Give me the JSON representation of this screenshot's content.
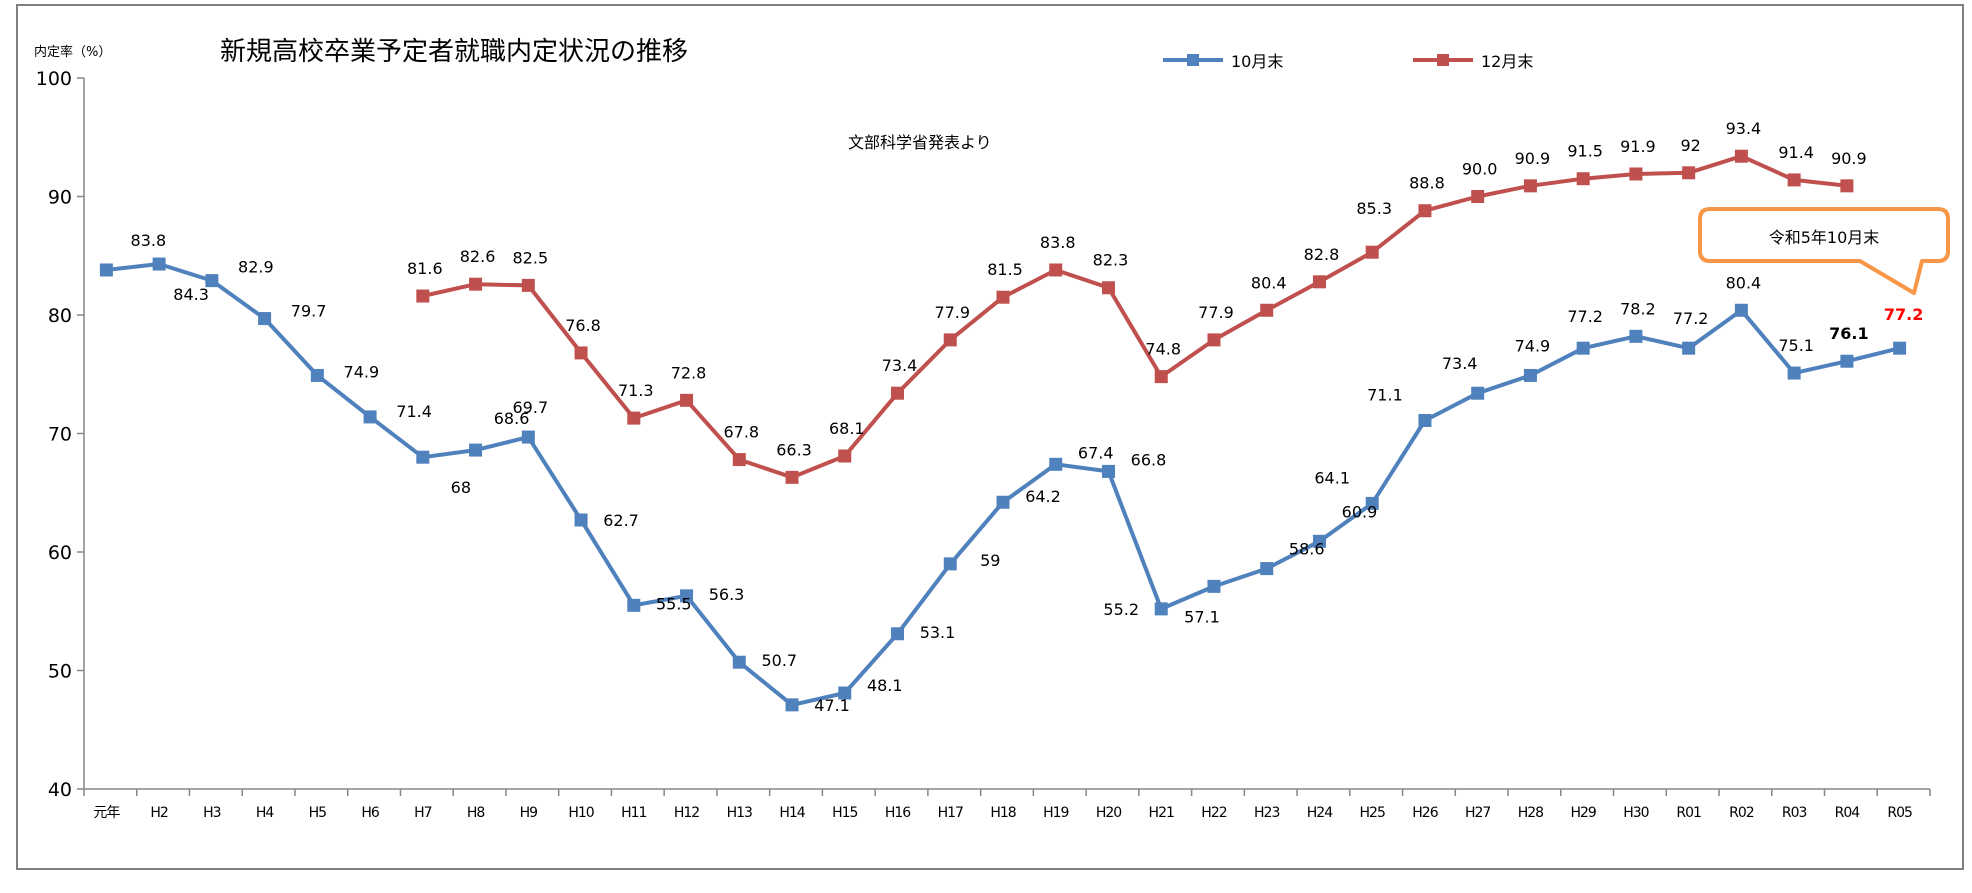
{
  "chart_data": {
    "type": "line",
    "title": "新規高校卒業予定者就職内定状況の推移",
    "subtitle": "文部科学省発表より",
    "ylabel": "内定率（%）",
    "xlabel": "",
    "ylim": [
      40,
      100
    ],
    "yticks": [
      40,
      50,
      60,
      70,
      80,
      90,
      100
    ],
    "grid": false,
    "legend_position": "top-center",
    "categories": [
      "元年",
      "H2",
      "H3",
      "H4",
      "H5",
      "H6",
      "H7",
      "H8",
      "H9",
      "H10",
      "H11",
      "H12",
      "H13",
      "H14",
      "H15",
      "H16",
      "H17",
      "H18",
      "H19",
      "H20",
      "H21",
      "H22",
      "H23",
      "H24",
      "H25",
      "H26",
      "H27",
      "H28",
      "H29",
      "H30",
      "R01",
      "R02",
      "R03",
      "R04",
      "R05"
    ],
    "series": [
      {
        "name": "10月末",
        "color": "#4f81bd",
        "values": [
          83.8,
          84.3,
          82.9,
          79.7,
          74.9,
          71.4,
          68,
          68.6,
          69.7,
          62.7,
          55.5,
          56.3,
          50.7,
          47.1,
          48.1,
          53.1,
          59,
          64.2,
          67.4,
          66.8,
          55.2,
          57.1,
          58.6,
          60.9,
          64.1,
          71.1,
          73.4,
          74.9,
          77.2,
          78.2,
          77.2,
          80.4,
          75.1,
          76.1,
          77.2
        ],
        "labels": [
          "83.8",
          "84.3",
          "82.9",
          "79.7",
          "74.9",
          "71.4",
          "68",
          "68.6",
          "69.7",
          "62.7",
          "55.5",
          "56.3",
          "50.7",
          "47.1",
          "48.1",
          "53.1",
          "59",
          "64.2",
          "67.4",
          "66.8",
          "55.2",
          "57.1",
          "58.6",
          "60.9",
          "64.1",
          "71.1",
          "73.4",
          "74.9",
          "77.2",
          "78.2",
          "77.2",
          "80.4",
          "75.1",
          "76.1",
          "77.2"
        ]
      },
      {
        "name": "12月末",
        "color": "#c0504d",
        "values": [
          null,
          null,
          null,
          null,
          null,
          null,
          81.6,
          82.6,
          82.5,
          76.8,
          71.3,
          72.8,
          67.8,
          66.3,
          68.1,
          73.4,
          77.9,
          81.5,
          83.8,
          82.3,
          74.8,
          77.9,
          80.4,
          82.8,
          85.3,
          88.8,
          90.0,
          90.9,
          91.5,
          91.9,
          92,
          93.4,
          91.4,
          90.9,
          null
        ],
        "labels": [
          null,
          null,
          null,
          null,
          null,
          null,
          "81.6",
          "82.6",
          "82.5",
          "76.8",
          "71.3",
          "72.8",
          "67.8",
          "66.3",
          "68.1",
          "73.4",
          "77.9",
          "81.5",
          "83.8",
          "82.3",
          "74.8",
          "77.9",
          "80.4",
          "82.8",
          "85.3",
          "88.8",
          "90.0",
          "90.9",
          "91.5",
          "91.9",
          "92",
          "93.4",
          "91.4",
          "90.9",
          null
        ]
      }
    ],
    "annotation": {
      "text": "令和5年10月末",
      "border_color": "#f79646",
      "highlight_color": "#ff0000"
    }
  }
}
